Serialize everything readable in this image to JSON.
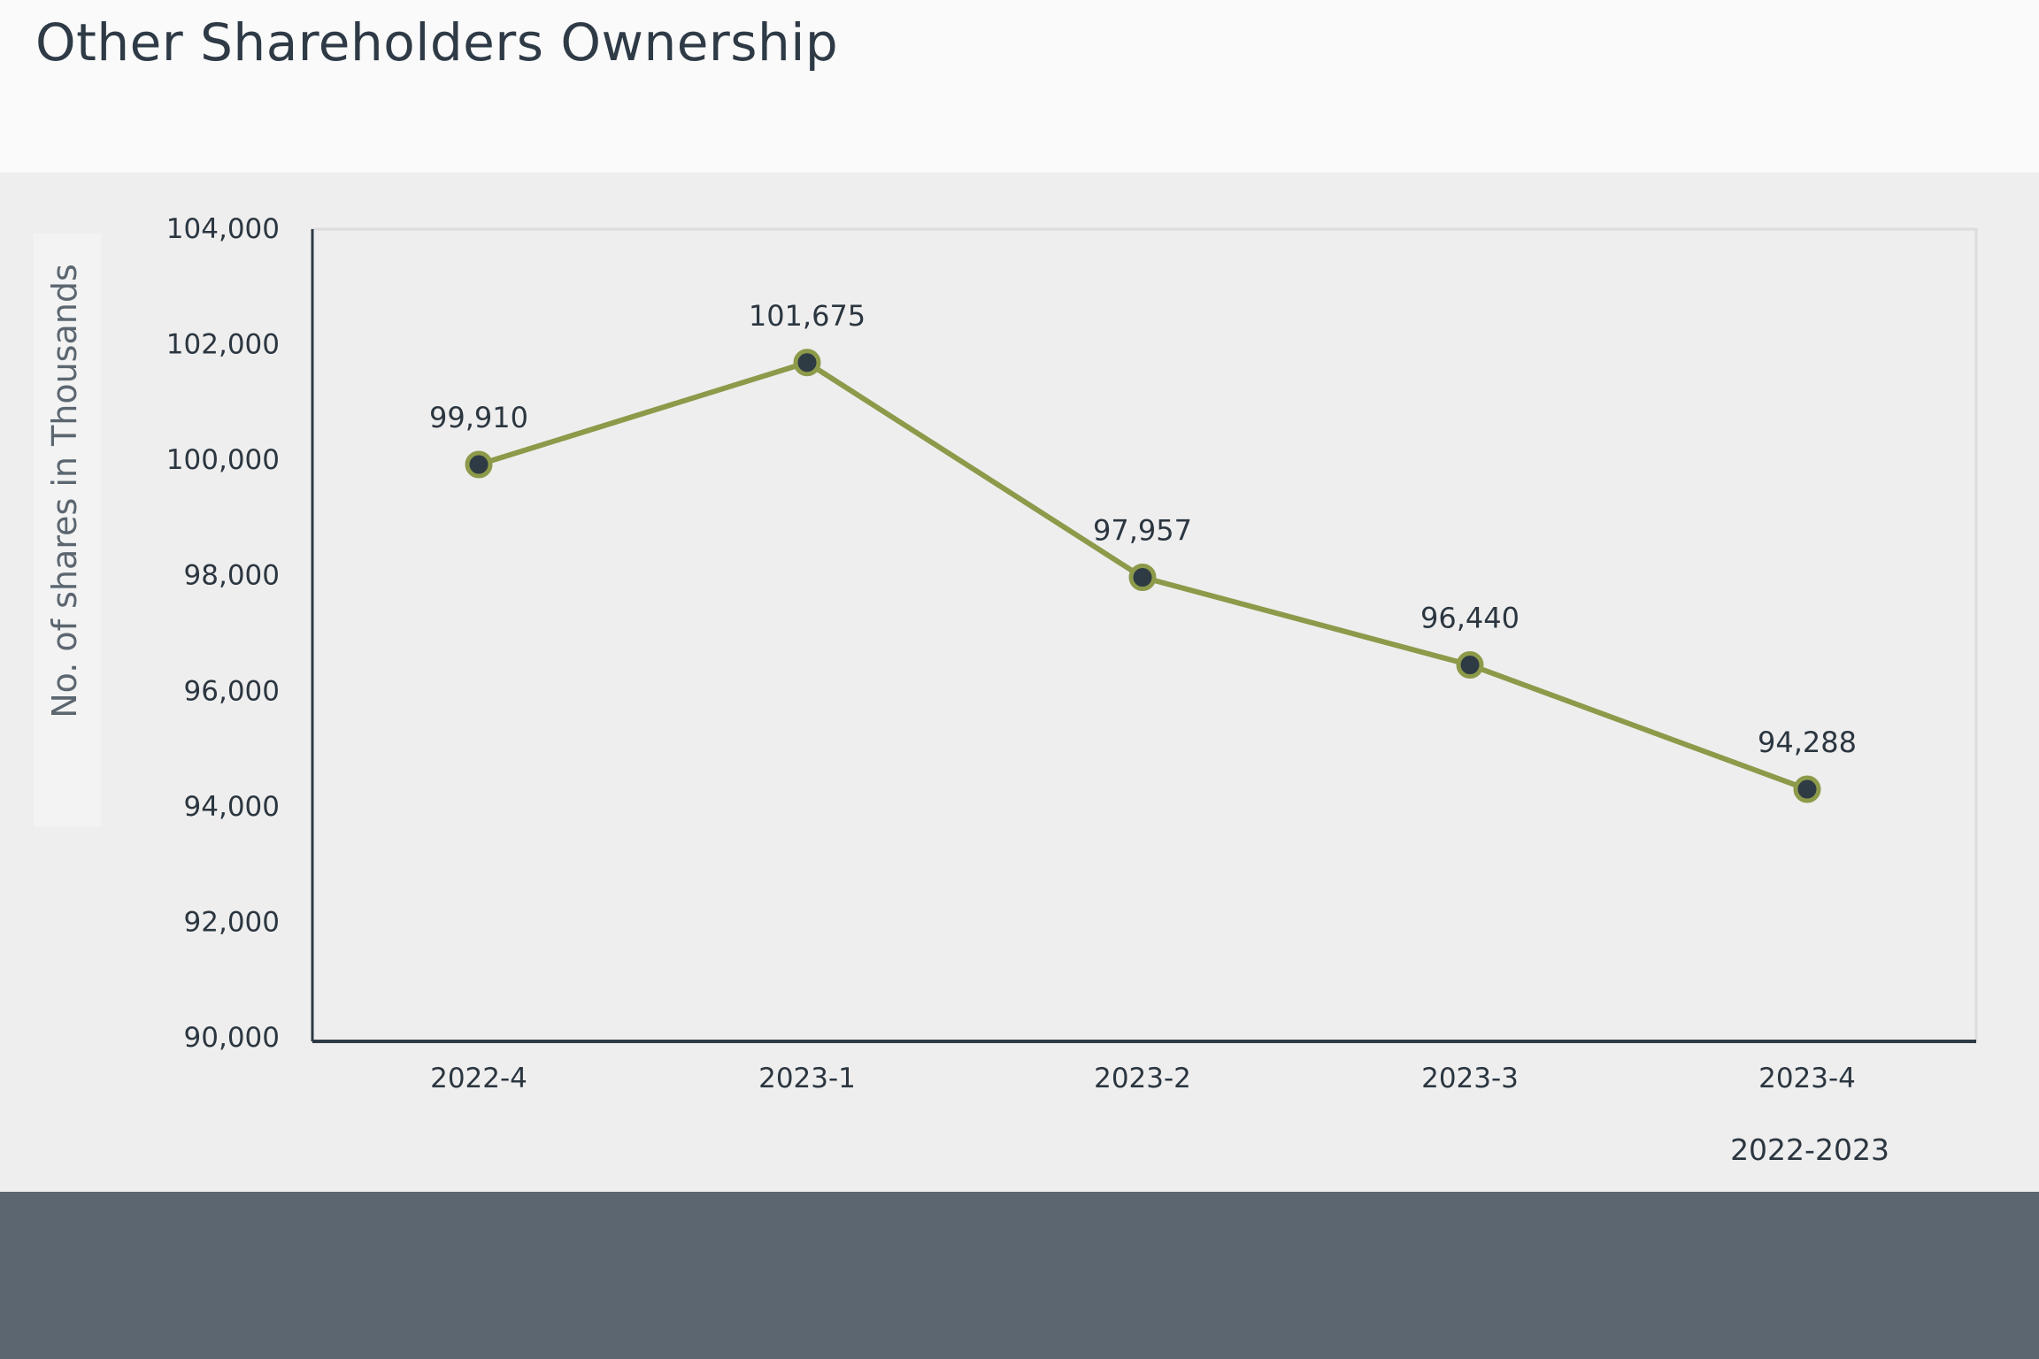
{
  "title": "Other Shareholders Ownership",
  "colors": {
    "line": "#8c9a4a",
    "marker_fill": "#2e3a44",
    "axis": "#2e3a46",
    "footer": "#5b6670"
  },
  "chart_data": {
    "type": "line",
    "title": "Other Shareholders Ownership",
    "xlabel": "2022-2023",
    "ylabel": "No. of shares in Thousands",
    "categories": [
      "2022-4",
      "2023-1",
      "2023-2",
      "2023-3",
      "2023-4"
    ],
    "series": [
      {
        "values": [
          99910,
          101675,
          97957,
          96440,
          94288
        ]
      }
    ],
    "data_labels": [
      "99,910",
      "101,675",
      "97,957",
      "96,440",
      "94,288"
    ],
    "ylim": [
      90000,
      104000
    ],
    "yticks": [
      "90,000",
      "92,000",
      "94,000",
      "96,000",
      "98,000",
      "100,000",
      "102,000",
      "104,000"
    ],
    "grid": false,
    "legend": "none"
  }
}
